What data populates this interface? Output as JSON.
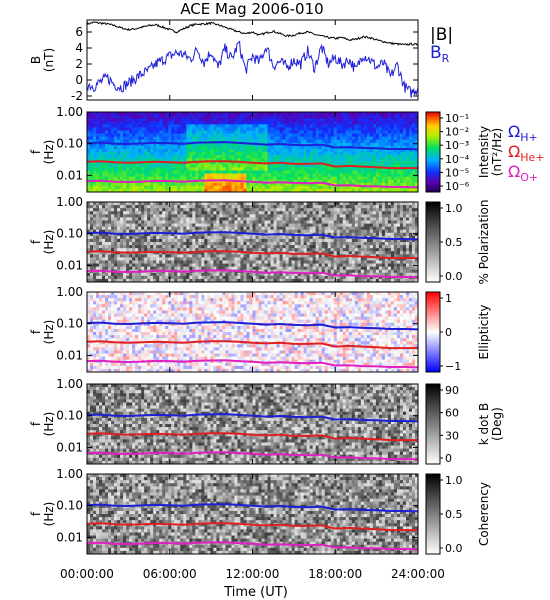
{
  "title": "ACE Mag 2006-010",
  "x_axis": {
    "label": "Time (UT)",
    "ticks": [
      "00:00:00",
      "06:00:00",
      "12:00:00",
      "18:00:00",
      "24:00:00"
    ],
    "range_hours": [
      0,
      24
    ]
  },
  "legends": {
    "top": {
      "B": "|B|",
      "BR": "B",
      "BR_sub": "R",
      "B_color": "#000000",
      "BR_color": "#1f1fd6"
    },
    "gyro": [
      {
        "label": "Ω",
        "sub": "H+",
        "color": "#1f1fd6"
      },
      {
        "label": "Ω",
        "sub": "He+",
        "color": "#e02020"
      },
      {
        "label": "Ω",
        "sub": "O+",
        "color": "#e020c0"
      }
    ]
  },
  "chart_data": [
    {
      "type": "line",
      "ylabel": "B",
      "yunit": "(nT)",
      "ylim": [
        -2.5,
        7.5
      ],
      "yticks": [
        "-2",
        "0",
        "2",
        "4",
        "6"
      ],
      "series": [
        {
          "name": "|B|",
          "color": "#000000",
          "x": [
            0,
            0.5,
            1,
            1.5,
            2,
            2.5,
            3,
            3.5,
            4,
            4.5,
            5,
            5.5,
            6,
            6.5,
            7,
            7.5,
            8,
            8.5,
            9,
            9.5,
            10,
            10.5,
            11,
            11.5,
            12,
            12.5,
            13,
            13.5,
            14,
            14.5,
            15,
            15.5,
            16,
            16.5,
            17,
            17.5,
            18,
            18.5,
            19,
            19.5,
            20,
            20.5,
            21,
            21.5,
            22,
            22.5,
            23,
            23.5,
            24
          ],
          "values": [
            7.0,
            7.2,
            7.1,
            7.0,
            6.8,
            6.5,
            6.3,
            6.4,
            6.6,
            6.8,
            6.9,
            6.6,
            6.3,
            6.0,
            6.4,
            6.8,
            7.0,
            7.0,
            7.1,
            6.9,
            6.6,
            6.3,
            6.0,
            5.8,
            6.0,
            5.6,
            5.9,
            6.1,
            5.8,
            5.5,
            5.6,
            5.9,
            6.0,
            5.7,
            5.5,
            5.3,
            5.2,
            5.3,
            5.0,
            5.1,
            5.4,
            5.3,
            5.0,
            4.8,
            4.6,
            4.5,
            4.4,
            4.5,
            4.4
          ]
        },
        {
          "name": "B_R",
          "color": "#1f1fd6",
          "x": [
            0,
            0.5,
            1,
            1.5,
            2,
            2.5,
            3,
            3.5,
            4,
            4.5,
            5,
            5.5,
            6,
            6.5,
            7,
            7.5,
            8,
            8.5,
            9,
            9.5,
            10,
            10.5,
            11,
            11.5,
            12,
            12.5,
            13,
            13.5,
            14,
            14.5,
            15,
            15.5,
            16,
            16.5,
            17,
            17.5,
            18,
            18.5,
            19,
            19.5,
            20,
            20.5,
            21,
            21.5,
            22,
            22.5,
            23,
            23.5,
            24
          ],
          "values": [
            -0.5,
            -0.8,
            -0.2,
            0.3,
            -0.6,
            -0.9,
            -0.4,
            0.2,
            0.8,
            1.2,
            2.0,
            2.5,
            3.0,
            3.4,
            3.2,
            2.6,
            3.8,
            2.2,
            3.6,
            1.5,
            3.9,
            2.6,
            4.6,
            1.2,
            3.0,
            2.2,
            4.2,
            1.8,
            2.3,
            1.6,
            2.5,
            2.0,
            3.6,
            1.5,
            4.1,
            2.0,
            2.8,
            1.9,
            2.6,
            1.2,
            3.2,
            2.6,
            1.6,
            2.1,
            0.4,
            1.9,
            -0.8,
            -1.6,
            -1.0
          ]
        }
      ]
    },
    {
      "type": "heatmap",
      "ylabel": "f",
      "yunit": "(Hz)",
      "yscale": "log",
      "ylim": [
        0.003,
        1.0
      ],
      "yticks": [
        "1.00",
        "0.10",
        "0.01"
      ],
      "colorbar": {
        "label": "Intensity",
        "unit": "(nT²/Hz)",
        "ticks": [
          "10⁻¹",
          "10⁻²",
          "10⁻³",
          "10⁻⁴",
          "10⁻⁵",
          "10⁻⁶"
        ],
        "scheme": "rainbow"
      }
    },
    {
      "type": "heatmap",
      "ylabel": "f",
      "yunit": "(Hz)",
      "yscale": "log",
      "ylim": [
        0.003,
        1.0
      ],
      "yticks": [
        "1.00",
        "0.10",
        "0.01"
      ],
      "colorbar": {
        "label": "% Polarization",
        "unit": "",
        "ticks": [
          "1.0",
          "0.5",
          "0.0"
        ],
        "scheme": "gray_inverse"
      }
    },
    {
      "type": "heatmap",
      "ylabel": "f",
      "yunit": "(Hz)",
      "yscale": "log",
      "ylim": [
        0.003,
        1.0
      ],
      "yticks": [
        "1.00",
        "0.10",
        "0.01"
      ],
      "colorbar": {
        "label": "Ellipticity",
        "unit": "",
        "ticks": [
          "1",
          "0",
          "−1"
        ],
        "scheme": "blue_white_red"
      }
    },
    {
      "type": "heatmap",
      "ylabel": "f",
      "yunit": "(Hz)",
      "yscale": "log",
      "ylim": [
        0.003,
        1.0
      ],
      "yticks": [
        "1.00",
        "0.10",
        "0.01"
      ],
      "colorbar": {
        "label": "k dot B",
        "unit": "(Deg)",
        "ticks": [
          "90",
          "60",
          "30",
          "0"
        ],
        "scheme": "gray_inverse"
      }
    },
    {
      "type": "heatmap",
      "ylabel": "f",
      "yunit": "(Hz)",
      "yscale": "log",
      "ylim": [
        0.003,
        1.0
      ],
      "yticks": [
        "1.00",
        "0.10",
        "0.01"
      ],
      "colorbar": {
        "label": "Coherency",
        "unit": "",
        "ticks": [
          "1.0",
          "0.5",
          "0.0"
        ],
        "scheme": "gray_inverse"
      }
    }
  ],
  "gyrofrequency_lines": {
    "x": [
      0,
      1,
      2,
      3,
      4,
      5,
      6,
      7,
      8,
      9,
      10,
      11,
      12,
      13,
      14,
      15,
      16,
      17,
      18,
      19,
      20,
      21,
      22,
      23,
      24
    ],
    "H+": [
      0.105,
      0.108,
      0.1,
      0.098,
      0.102,
      0.106,
      0.104,
      0.1,
      0.108,
      0.11,
      0.112,
      0.106,
      0.1,
      0.094,
      0.098,
      0.092,
      0.09,
      0.094,
      0.076,
      0.078,
      0.074,
      0.072,
      0.068,
      0.068,
      0.066
    ],
    "He+": [
      0.027,
      0.028,
      0.026,
      0.025,
      0.026,
      0.027,
      0.026,
      0.025,
      0.027,
      0.028,
      0.028,
      0.027,
      0.025,
      0.024,
      0.025,
      0.023,
      0.023,
      0.024,
      0.019,
      0.02,
      0.019,
      0.018,
      0.017,
      0.017,
      0.017
    ],
    "O+": [
      0.0066,
      0.0068,
      0.0063,
      0.0062,
      0.0064,
      0.0067,
      0.0066,
      0.0063,
      0.0068,
      0.0069,
      0.007,
      0.0066,
      0.0063,
      0.0059,
      0.0061,
      0.0058,
      0.0057,
      0.0059,
      0.0048,
      0.0049,
      0.0046,
      0.0045,
      0.0043,
      0.0043,
      0.0042
    ]
  }
}
